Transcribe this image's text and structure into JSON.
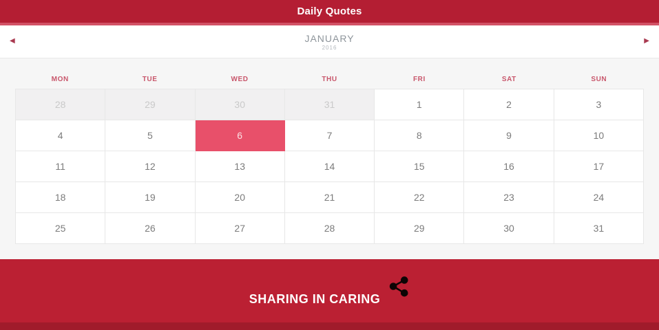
{
  "app": {
    "title": "Daily Quotes"
  },
  "month_header": {
    "month": "JANUARY",
    "year": "2016",
    "prev_icon": "◀",
    "next_icon": "▶"
  },
  "calendar": {
    "day_headers": [
      "MON",
      "TUE",
      "WED",
      "THU",
      "FRI",
      "SAT",
      "SUN"
    ],
    "selected_date": "6",
    "cells": [
      {
        "value": "28",
        "state": "prev"
      },
      {
        "value": "29",
        "state": "prev"
      },
      {
        "value": "30",
        "state": "prev"
      },
      {
        "value": "31",
        "state": "prev"
      },
      {
        "value": "1",
        "state": "normal"
      },
      {
        "value": "2",
        "state": "normal"
      },
      {
        "value": "3",
        "state": "normal"
      },
      {
        "value": "4",
        "state": "normal"
      },
      {
        "value": "5",
        "state": "normal"
      },
      {
        "value": "6",
        "state": "selected"
      },
      {
        "value": "7",
        "state": "normal"
      },
      {
        "value": "8",
        "state": "normal"
      },
      {
        "value": "9",
        "state": "normal"
      },
      {
        "value": "10",
        "state": "normal"
      },
      {
        "value": "11",
        "state": "normal"
      },
      {
        "value": "12",
        "state": "normal"
      },
      {
        "value": "13",
        "state": "normal"
      },
      {
        "value": "14",
        "state": "normal"
      },
      {
        "value": "15",
        "state": "normal"
      },
      {
        "value": "16",
        "state": "normal"
      },
      {
        "value": "17",
        "state": "normal"
      },
      {
        "value": "18",
        "state": "normal"
      },
      {
        "value": "19",
        "state": "normal"
      },
      {
        "value": "20",
        "state": "normal"
      },
      {
        "value": "21",
        "state": "normal"
      },
      {
        "value": "22",
        "state": "normal"
      },
      {
        "value": "23",
        "state": "normal"
      },
      {
        "value": "24",
        "state": "normal"
      },
      {
        "value": "25",
        "state": "normal"
      },
      {
        "value": "26",
        "state": "normal"
      },
      {
        "value": "27",
        "state": "normal"
      },
      {
        "value": "28",
        "state": "normal"
      },
      {
        "value": "29",
        "state": "normal"
      },
      {
        "value": "30",
        "state": "normal"
      },
      {
        "value": "31",
        "state": "normal"
      }
    ]
  },
  "footer": {
    "label": "SHARING IN CARING",
    "share_icon": "share-icon"
  },
  "colors": {
    "top_bar": "#b41e33",
    "accent_strip": "#d25266",
    "footer_bg": "#bb2033",
    "selected_day": "#e8506a",
    "day_header_text": "#c8566b"
  }
}
